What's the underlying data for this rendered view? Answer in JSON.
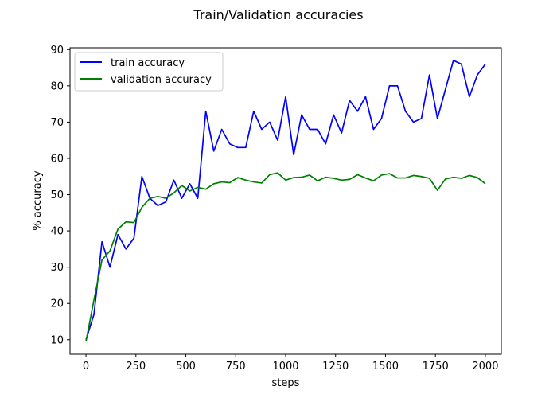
{
  "chart_data": {
    "type": "line",
    "title": "Train/Validation accuracies",
    "xlabel": "steps",
    "ylabel": "% accuracy",
    "xlim": [
      -80,
      2080
    ],
    "ylim": [
      6,
      90.5
    ],
    "xticks": [
      0,
      250,
      500,
      750,
      1000,
      1250,
      1500,
      1750,
      2000
    ],
    "yticks": [
      10,
      20,
      30,
      40,
      50,
      60,
      70,
      80,
      90
    ],
    "grid": false,
    "legend_position": "top-left",
    "x": [
      0,
      40,
      80,
      120,
      160,
      200,
      240,
      280,
      320,
      360,
      400,
      440,
      480,
      520,
      560,
      600,
      640,
      680,
      720,
      760,
      800,
      840,
      880,
      920,
      960,
      1000,
      1040,
      1080,
      1120,
      1160,
      1200,
      1240,
      1280,
      1320,
      1360,
      1400,
      1440,
      1480,
      1520,
      1560,
      1600,
      1640,
      1680,
      1720,
      1760,
      1800,
      1840,
      1880,
      1920,
      1960,
      2000
    ],
    "series": [
      {
        "name": "train accuracy",
        "color": "#0000ff",
        "values": [
          10,
          17,
          37,
          30,
          39,
          35,
          38,
          55,
          49,
          47,
          48,
          54,
          49,
          53,
          49,
          73,
          62,
          68,
          64,
          63,
          63,
          73,
          68,
          70,
          65,
          77,
          61,
          72,
          68,
          68,
          64,
          72,
          67,
          76,
          73,
          77,
          68,
          71,
          80,
          80,
          73,
          70,
          71,
          83,
          71,
          79,
          87,
          86,
          77,
          83,
          86
        ]
      },
      {
        "name": "validation accuracy",
        "color": "#008000",
        "values": [
          9.5,
          21,
          32,
          34.5,
          40.5,
          42.5,
          42.3,
          46.5,
          49,
          49.5,
          49,
          50.5,
          52.5,
          51,
          52,
          51.5,
          53,
          53.5,
          53.3,
          54.7,
          54,
          53.5,
          53.2,
          55.5,
          56,
          54,
          54.7,
          54.8,
          55.4,
          53.8,
          54.8,
          54.5,
          54,
          54.2,
          55.5,
          54.6,
          53.8,
          55.4,
          55.8,
          54.6,
          54.6,
          55.3,
          55,
          54.5,
          51.2,
          54.3,
          54.8,
          54.5,
          55.3,
          54.7,
          53
        ]
      }
    ]
  }
}
